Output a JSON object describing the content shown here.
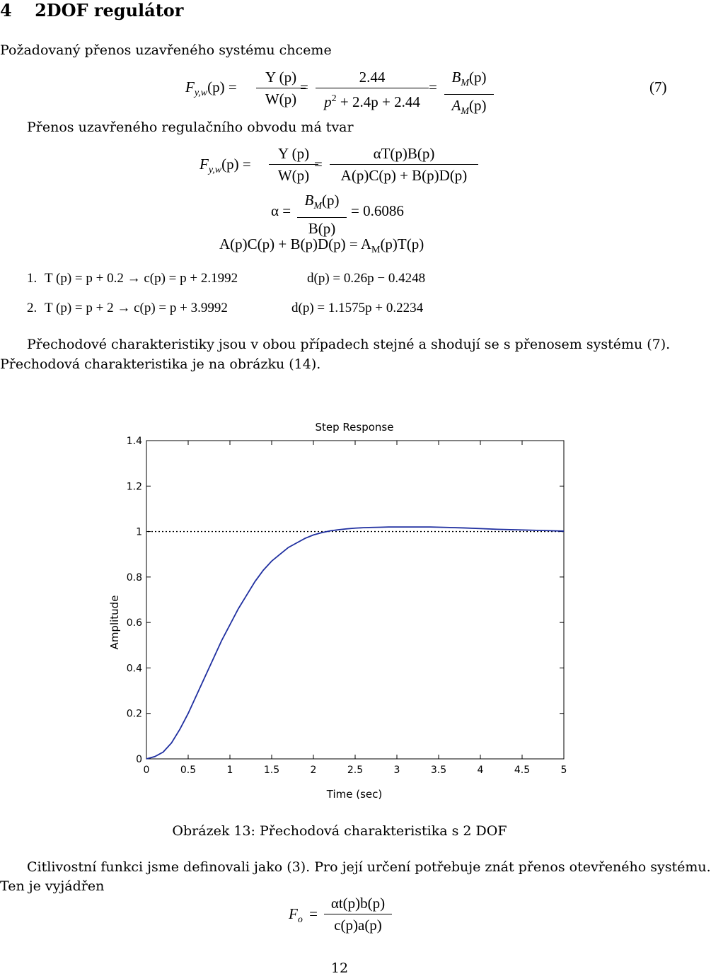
{
  "section": {
    "number": "4",
    "title": "2DOF regulátor"
  },
  "intro": "Požadovaný přenos uzavřeného systému chceme",
  "eq7": {
    "lhs": "F",
    "lhs_sub": "y,w",
    "lhs_arg": "(p) =",
    "frac1_num": "Y (p)",
    "frac1_den": "W(p)",
    "eq1": "=",
    "frac2_num": "2.44",
    "frac2_den_a": "p",
    "frac2_den_sup": "2",
    "frac2_den_b": " + 2.4p + 2.44",
    "eq2": "=",
    "frac3_num_a": "B",
    "frac3_num_sub": "M",
    "frac3_num_b": "(p)",
    "frac3_den_a": "A",
    "frac3_den_sub": "M",
    "frac3_den_b": "(p)",
    "tag": "(7)"
  },
  "closed_loop_text": "Přenos uzavřeného regulačního obvodu má tvar",
  "eq_closed": {
    "lhs": "F",
    "lhs_sub": "y,w",
    "lhs_arg": "(p) =",
    "frac1_num": "Y (p)",
    "frac1_den": "W(p)",
    "eq1": "=",
    "frac2_num": "αT(p)B(p)",
    "frac2_den": "A(p)C(p) + B(p)D(p)"
  },
  "eq_alpha": {
    "lhs": "α =",
    "num_a": "B",
    "num_sub": "M",
    "num_b": "(p)",
    "den": "B(p)",
    "rhs": "= 0.6086"
  },
  "eq_dioph": {
    "a": "A(p)C(p) + B(p)D(p) = A",
    "sub": "M",
    "b": "(p)T(p)"
  },
  "cases": [
    {
      "num": "1.",
      "t": "T (p) = p + 0.2 → c(p) = p + 2.1992",
      "d": "d(p) = 0.26p − 0.4248"
    },
    {
      "num": "2.",
      "t": "T (p) = p + 2 → c(p) = p + 3.9992",
      "d": "d(p) = 1.1575p + 0.2234"
    }
  ],
  "para1_line1": "Přechodové charakteristiky jsou v obou případech stejné a shodují se s přenosem systému (7).",
  "para1_line2": "Přechodová charakteristika je na obrázku (14).",
  "chart_data": {
    "type": "line",
    "title": "Step Response",
    "xlabel": "Time (sec)",
    "ylabel": "Amplitude",
    "xlim": [
      0,
      5
    ],
    "ylim": [
      0,
      1.4
    ],
    "xticks": [
      "0",
      "0.5",
      "1",
      "1.5",
      "2",
      "2.5",
      "3",
      "3.5",
      "4",
      "4.5",
      "5"
    ],
    "yticks": [
      "0",
      "0.2",
      "0.4",
      "0.6",
      "0.8",
      "1",
      "1.2",
      "1.4"
    ],
    "grid": false,
    "reference_line": {
      "y": 1,
      "style": "dotted"
    },
    "series": [
      {
        "color": "#1f2fa0",
        "x": [
          0,
          0.1,
          0.2,
          0.3,
          0.4,
          0.5,
          0.6,
          0.7,
          0.8,
          0.9,
          1.0,
          1.1,
          1.2,
          1.3,
          1.4,
          1.5,
          1.6,
          1.7,
          1.8,
          1.9,
          2.0,
          2.1,
          2.2,
          2.3,
          2.4,
          2.5,
          2.6,
          2.7,
          2.8,
          2.9,
          3.0,
          3.2,
          3.4,
          3.6,
          3.8,
          4.0,
          4.2,
          4.4,
          4.6,
          4.8,
          5.0
        ],
        "values": [
          0,
          0.01,
          0.03,
          0.07,
          0.13,
          0.2,
          0.28,
          0.36,
          0.44,
          0.52,
          0.59,
          0.66,
          0.72,
          0.78,
          0.83,
          0.87,
          0.9,
          0.93,
          0.95,
          0.97,
          0.985,
          0.995,
          1.003,
          1.008,
          1.012,
          1.015,
          1.017,
          1.018,
          1.019,
          1.02,
          1.02,
          1.02,
          1.02,
          1.018,
          1.016,
          1.013,
          1.01,
          1.008,
          1.006,
          1.004,
          1.002
        ]
      }
    ]
  },
  "figure_caption": "Obrázek 13: Přechodová charakteristika s 2 DOF",
  "para2_line1": "Citlivostní funkci jsme definovali jako (3). Pro její určení potřebuje znát přenos otevřeného systému.",
  "para2_line2": "Ten je vyjádřen",
  "eq_open": {
    "lhs": "F",
    "lhs_sub": "o",
    "eq": "=",
    "num": "αt(p)b(p)",
    "den": "c(p)a(p)"
  },
  "page_number": "12"
}
